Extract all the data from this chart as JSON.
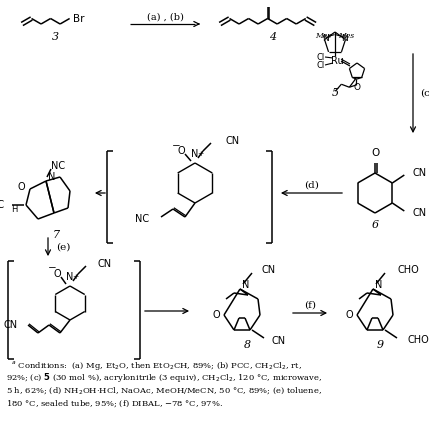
{
  "bg": "#ffffff",
  "footnote": [
    "  ᵃ Conditions:  (a) Mg, Et₂O, then EtO₂CH, 89%; (b) PCC, CH₂Cl₂, rt,",
    "92%; (c) \u00035 (30 mol %), acrylonitrile (3 equiv), CH₂Cl₂, 120 °C, microwave,",
    "5 h, 62%; (d) NH₂OH·HCl, NaOAc, MeOH/MeCN, 50 °C, 89%; (e) toluene,",
    "180 °C, sealed tube, 95%; (f) DIBAL, −78 °C, 97%."
  ]
}
